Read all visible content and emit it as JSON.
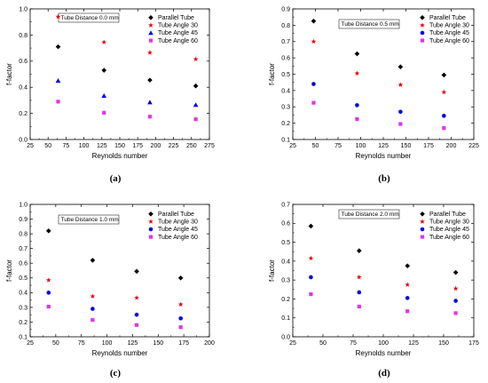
{
  "colors": {
    "parallel": "#000000",
    "angle30": "#e8000b",
    "angle45": "#0000e6",
    "angle60": "#e632e6"
  },
  "legend_labels": [
    "Parallel Tube",
    "Tube Angle 30",
    "Tube Angle 45",
    "Tube Angle 60"
  ],
  "chart_data": [
    {
      "type": "scatter",
      "caption": "(a)",
      "annotation": "Tube Distance 0.0 mm",
      "xlabel": "Reynolds number",
      "ylabel": "f-factor",
      "xlim": [
        25,
        275
      ],
      "ylim": [
        0.0,
        1.0
      ],
      "xticks": [
        25,
        50,
        75,
        100,
        125,
        150,
        175,
        200,
        225,
        250,
        275
      ],
      "yticks": [
        0.0,
        0.2,
        0.4,
        0.6,
        0.8,
        1.0
      ],
      "x": [
        64,
        128,
        192,
        256
      ],
      "series": [
        {
          "name": "Parallel Tube",
          "values": [
            0.71,
            0.53,
            0.455,
            0.41
          ]
        },
        {
          "name": "Tube Angle 30",
          "values": [
            0.94,
            0.745,
            0.665,
            0.615
          ]
        },
        {
          "name": "Tube Angle 45",
          "values": [
            0.45,
            0.335,
            0.285,
            0.265
          ]
        },
        {
          "name": "Tube Angle 60",
          "values": [
            0.29,
            0.205,
            0.175,
            0.155
          ]
        }
      ]
    },
    {
      "type": "scatter",
      "caption": "(b)",
      "annotation": "Tube Distance 0.5 mm",
      "xlabel": "Reynolds number",
      "ylabel": "f-factor",
      "xlim": [
        25,
        225
      ],
      "ylim": [
        0.1,
        0.9
      ],
      "xticks": [
        25,
        50,
        75,
        100,
        125,
        150,
        175,
        200,
        225
      ],
      "yticks": [
        0.1,
        0.2,
        0.3,
        0.4,
        0.5,
        0.6,
        0.7,
        0.8,
        0.9
      ],
      "x": [
        48,
        96,
        144,
        192
      ],
      "series": [
        {
          "name": "Parallel Tube",
          "values": [
            0.825,
            0.625,
            0.545,
            0.495
          ]
        },
        {
          "name": "Tube Angle 30",
          "values": [
            0.7,
            0.505,
            0.435,
            0.39
          ]
        },
        {
          "name": "Tube Angle 45",
          "values": [
            0.44,
            0.31,
            0.27,
            0.245
          ]
        },
        {
          "name": "Tube Angle 60",
          "values": [
            0.325,
            0.225,
            0.195,
            0.17
          ]
        }
      ]
    },
    {
      "type": "scatter",
      "caption": "(c)",
      "annotation": "Tube Distance 1.0 mm",
      "xlabel": "Reynolds number",
      "ylabel": "f-factor",
      "xlim": [
        25,
        200
      ],
      "ylim": [
        0.1,
        1.0
      ],
      "xticks": [
        25,
        50,
        75,
        100,
        125,
        150,
        175,
        200
      ],
      "yticks": [
        0.1,
        0.2,
        0.3,
        0.4,
        0.5,
        0.6,
        0.7,
        0.8,
        0.9,
        1.0
      ],
      "x": [
        43,
        86,
        129,
        172
      ],
      "series": [
        {
          "name": "Parallel Tube",
          "values": [
            0.82,
            0.62,
            0.545,
            0.5
          ]
        },
        {
          "name": "Tube Angle 30",
          "values": [
            0.485,
            0.375,
            0.365,
            0.32
          ]
        },
        {
          "name": "Tube Angle 45",
          "values": [
            0.4,
            0.29,
            0.25,
            0.225
          ]
        },
        {
          "name": "Tube Angle 60",
          "values": [
            0.305,
            0.215,
            0.18,
            0.165
          ]
        }
      ]
    },
    {
      "type": "scatter",
      "caption": "(d)",
      "annotation": "Tube Distance 2.0 mm",
      "xlabel": "Reynolds number",
      "ylabel": "f-factor",
      "xlim": [
        25,
        175
      ],
      "ylim": [
        0.0,
        0.7
      ],
      "xticks": [
        25,
        50,
        75,
        100,
        125,
        150,
        175
      ],
      "yticks": [
        0.0,
        0.1,
        0.2,
        0.3,
        0.4,
        0.5,
        0.6,
        0.7
      ],
      "x": [
        40,
        80,
        120,
        160
      ],
      "series": [
        {
          "name": "Parallel Tube",
          "values": [
            0.585,
            0.455,
            0.375,
            0.34
          ]
        },
        {
          "name": "Tube Angle 30",
          "values": [
            0.415,
            0.315,
            0.275,
            0.255
          ]
        },
        {
          "name": "Tube Angle 45",
          "values": [
            0.315,
            0.235,
            0.205,
            0.19
          ]
        },
        {
          "name": "Tube Angle 60",
          "values": [
            0.225,
            0.16,
            0.135,
            0.125
          ]
        }
      ]
    }
  ]
}
